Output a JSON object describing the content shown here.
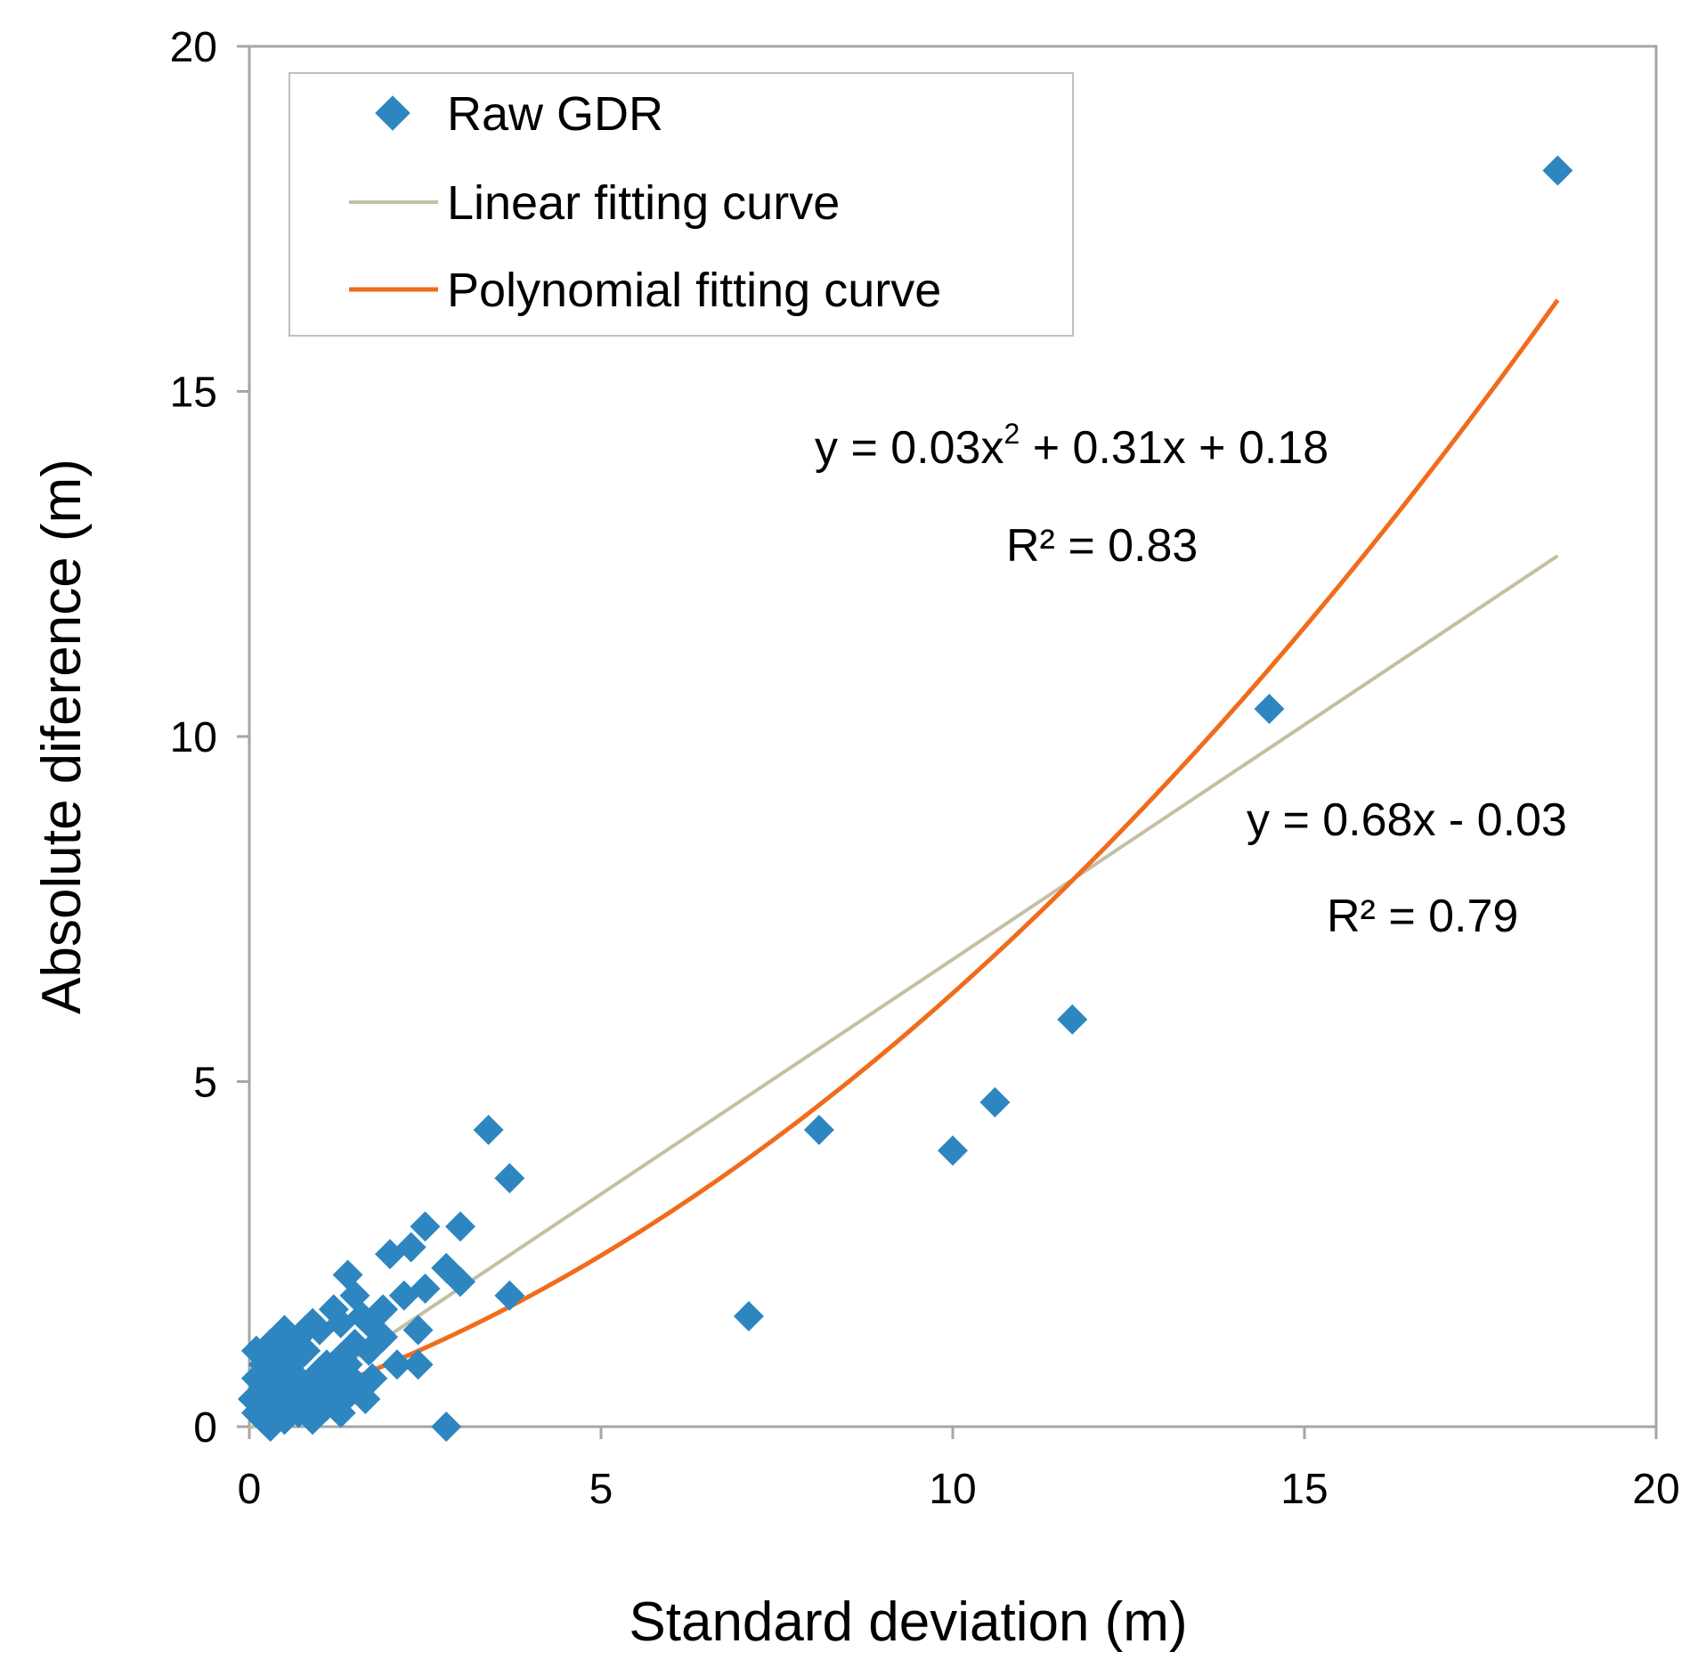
{
  "chart_data": {
    "type": "scatter",
    "xlabel": "Standard deviation (m)",
    "ylabel": "Absolute diference (m)",
    "xlim": [
      0,
      20
    ],
    "ylim": [
      0,
      20
    ],
    "xticks": [
      "0",
      "5",
      "10",
      "15",
      "20"
    ],
    "yticks": [
      "0",
      "5",
      "10",
      "15",
      "20"
    ],
    "grid": false,
    "legend_position": "top-left",
    "legend": [
      {
        "label": "Raw GDR",
        "kind": "marker"
      },
      {
        "label": "Linear fitting curve",
        "kind": "line"
      },
      {
        "label": "Polynomial fitting curve",
        "kind": "line"
      }
    ],
    "colors": {
      "points": "#2e86c1",
      "linear": "#c4bfa5",
      "polynomial": "#f06c1c",
      "axis": "#a6a6a6"
    },
    "series": [
      {
        "name": "Raw GDR",
        "x": [
          18.6,
          14.5,
          11.7,
          10.6,
          10.0,
          8.1,
          7.1,
          3.4,
          3.7,
          3.7,
          2.5,
          3.0,
          2.8,
          2.8,
          2.3,
          2.0,
          1.4,
          3.0,
          2.5,
          2.4,
          2.2,
          1.9,
          1.5,
          1.8,
          1.6,
          1.3,
          1.2,
          1.0,
          0.9,
          0.8,
          0.7,
          0.6,
          0.5,
          0.4,
          0.3,
          0.2,
          0.1,
          0.05,
          0.1,
          0.2,
          0.3,
          0.4,
          0.5,
          0.6,
          0.7,
          0.8,
          1.0,
          1.1,
          1.3,
          1.5,
          1.7,
          1.9,
          2.1,
          2.4,
          0.15,
          0.25,
          0.35,
          0.45,
          0.55,
          0.65,
          0.75,
          0.85,
          0.95,
          1.05,
          1.15,
          1.25,
          1.35,
          1.45,
          1.55,
          1.65,
          1.75,
          0.2,
          0.3,
          0.5,
          0.7,
          0.9,
          1.1,
          1.3,
          0.4,
          0.6,
          0.8,
          1.2,
          1.4,
          0.1,
          0.3,
          0.5
        ],
        "y": [
          18.2,
          10.4,
          5.9,
          4.7,
          4.0,
          4.3,
          1.6,
          4.3,
          3.6,
          1.9,
          2.9,
          2.9,
          2.3,
          0.0,
          2.6,
          2.5,
          2.2,
          2.1,
          2.0,
          1.4,
          1.9,
          1.7,
          1.9,
          1.4,
          1.6,
          1.5,
          1.7,
          1.4,
          1.5,
          1.4,
          1.3,
          1.2,
          1.4,
          1.1,
          1.2,
          1.0,
          1.1,
          0.4,
          0.7,
          0.9,
          0.8,
          1.0,
          0.6,
          0.9,
          0.7,
          1.1,
          0.8,
          0.9,
          1.0,
          1.2,
          1.1,
          1.3,
          0.9,
          0.9,
          0.3,
          0.5,
          0.2,
          0.6,
          0.4,
          0.3,
          0.5,
          0.2,
          0.6,
          0.4,
          0.7,
          0.3,
          0.8,
          0.5,
          0.6,
          0.4,
          0.7,
          0.1,
          0.0,
          0.1,
          0.2,
          0.1,
          0.3,
          0.2,
          0.8,
          1.0,
          0.5,
          0.6,
          0.9,
          0.2,
          0.7,
          0.9
        ]
      },
      {
        "name": "Linear fitting curve",
        "equation": "y = 0.68x - 0.03",
        "r2": "R² = 0.79",
        "slope": 0.68,
        "intercept": -0.03,
        "x_range": [
          0,
          18.6
        ]
      },
      {
        "name": "Polynomial fitting curve",
        "equation_prefix": "y = 0.03x",
        "equation_sup": "2",
        "equation_suffix": " + 0.31x + 0.18",
        "r2": "R² = 0.83",
        "a": 0.03,
        "b": 0.31,
        "c": 0.18,
        "x_range": [
          0,
          18.6
        ]
      }
    ]
  }
}
